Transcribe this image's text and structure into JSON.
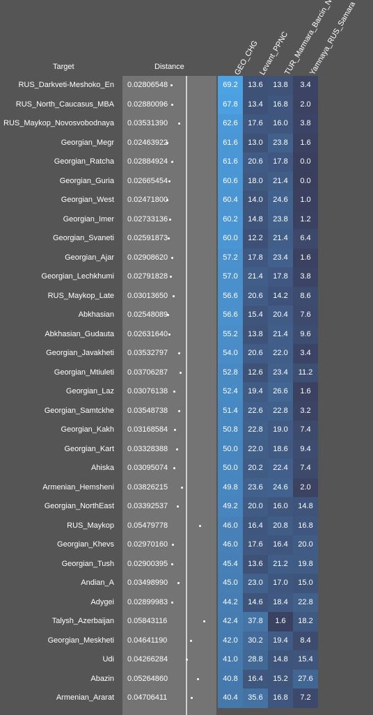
{
  "chart_data": {
    "type": "table",
    "headers": {
      "target": "Target",
      "distance": "Distance",
      "components": [
        "GEO_CHG",
        "Levant_PPNC",
        "TUR_Marmara_Barcin_N",
        "Yamnaya_RUS_Samara"
      ]
    },
    "rows": [
      {
        "target": "RUS_Darkveti-Meshoko_En",
        "distance": "0.02806548",
        "values": [
          69.2,
          13.6,
          13.8,
          3.4
        ]
      },
      {
        "target": "RUS_North_Caucasus_MBA",
        "distance": "0.02880096",
        "values": [
          67.8,
          13.4,
          16.8,
          2.0
        ]
      },
      {
        "target": "RUS_Maykop_Novosvobodnaya",
        "distance": "0.03531390",
        "values": [
          62.6,
          17.6,
          16.0,
          3.8
        ]
      },
      {
        "target": "Georgian_Megr",
        "distance": "0.02463922",
        "values": [
          61.6,
          13.0,
          23.8,
          1.6
        ]
      },
      {
        "target": "Georgian_Ratcha",
        "distance": "0.02884924",
        "values": [
          61.6,
          20.6,
          17.8,
          0.0
        ]
      },
      {
        "target": "Georgian_Guria",
        "distance": "0.02665454",
        "values": [
          60.6,
          18.0,
          21.4,
          0.0
        ]
      },
      {
        "target": "Georgian_West",
        "distance": "0.02471800",
        "values": [
          60.4,
          14.0,
          24.6,
          1.0
        ]
      },
      {
        "target": "Georgian_Imer",
        "distance": "0.02733136",
        "values": [
          60.2,
          14.8,
          23.8,
          1.2
        ]
      },
      {
        "target": "Georgian_Svaneti",
        "distance": "0.02591873",
        "values": [
          60.0,
          12.2,
          21.4,
          6.4
        ]
      },
      {
        "target": "Georgian_Ajar",
        "distance": "0.02908620",
        "values": [
          57.2,
          17.8,
          23.4,
          1.6
        ]
      },
      {
        "target": "Georgian_Lechkhumi",
        "distance": "0.02791828",
        "values": [
          57.0,
          21.4,
          17.8,
          3.8
        ]
      },
      {
        "target": "RUS_Maykop_Late",
        "distance": "0.03013650",
        "values": [
          56.6,
          20.6,
          14.2,
          8.6
        ]
      },
      {
        "target": "Abkhasian",
        "distance": "0.02548089",
        "values": [
          56.6,
          15.4,
          20.4,
          7.6
        ]
      },
      {
        "target": "Abkhasian_Gudauta",
        "distance": "0.02631640",
        "values": [
          55.2,
          13.8,
          21.4,
          9.6
        ]
      },
      {
        "target": "Georgian_Javakheti",
        "distance": "0.03532797",
        "values": [
          54.0,
          20.6,
          22.0,
          3.4
        ]
      },
      {
        "target": "Georgian_Mtiuleti",
        "distance": "0.03706287",
        "values": [
          52.8,
          12.6,
          23.4,
          11.2
        ]
      },
      {
        "target": "Georgian_Laz",
        "distance": "0.03076138",
        "values": [
          52.4,
          19.4,
          26.6,
          1.6
        ]
      },
      {
        "target": "Georgian_Samtckhe",
        "distance": "0.03548738",
        "values": [
          51.4,
          22.6,
          22.8,
          3.2
        ]
      },
      {
        "target": "Georgian_Kakh",
        "distance": "0.03168584",
        "values": [
          50.8,
          22.8,
          19.0,
          7.4
        ]
      },
      {
        "target": "Georgian_Kart",
        "distance": "0.03328388",
        "values": [
          50.0,
          22.0,
          18.6,
          9.4
        ]
      },
      {
        "target": "Ahiska",
        "distance": "0.03095074",
        "values": [
          50.0,
          20.2,
          22.4,
          7.4
        ]
      },
      {
        "target": "Armenian_Hemsheni",
        "distance": "0.03826215",
        "values": [
          49.8,
          23.6,
          24.6,
          2.0
        ]
      },
      {
        "target": "Georgian_NorthEast",
        "distance": "0.03392537",
        "values": [
          49.2,
          20.0,
          16.0,
          14.8
        ]
      },
      {
        "target": "RUS_Maykop",
        "distance": "0.05479778",
        "values": [
          46.0,
          16.4,
          20.8,
          16.8
        ]
      },
      {
        "target": "Georgian_Khevs",
        "distance": "0.02970160",
        "values": [
          46.0,
          17.6,
          16.4,
          20.0
        ]
      },
      {
        "target": "Georgian_Tush",
        "distance": "0.02900395",
        "values": [
          45.4,
          13.6,
          21.2,
          19.8
        ]
      },
      {
        "target": "Andian_A",
        "distance": "0.03498990",
        "values": [
          45.0,
          23.0,
          17.0,
          15.0
        ]
      },
      {
        "target": "Adygei",
        "distance": "0.02899983",
        "values": [
          44.2,
          14.6,
          18.4,
          22.8
        ]
      },
      {
        "target": "Talysh_Azerbaijan",
        "distance": "0.05843116",
        "values": [
          42.4,
          37.8,
          1.6,
          18.2
        ]
      },
      {
        "target": "Georgian_Meskheti",
        "distance": "0.04641190",
        "values": [
          42.0,
          30.2,
          19.4,
          8.4
        ]
      },
      {
        "target": "Udi",
        "distance": "0.04266284",
        "values": [
          41.0,
          28.8,
          14.8,
          15.4
        ]
      },
      {
        "target": "Abazin",
        "distance": "0.05264860",
        "values": [
          40.8,
          16.4,
          15.2,
          27.6
        ]
      },
      {
        "target": "Armenian_Ararat",
        "distance": "0.04706411",
        "values": [
          40.4,
          35.6,
          16.8,
          7.2
        ]
      }
    ],
    "colors": {
      "background": "#555555",
      "distance_background": "#747474",
      "high": "#4da3e6",
      "low": "#3b3f5e"
    }
  }
}
